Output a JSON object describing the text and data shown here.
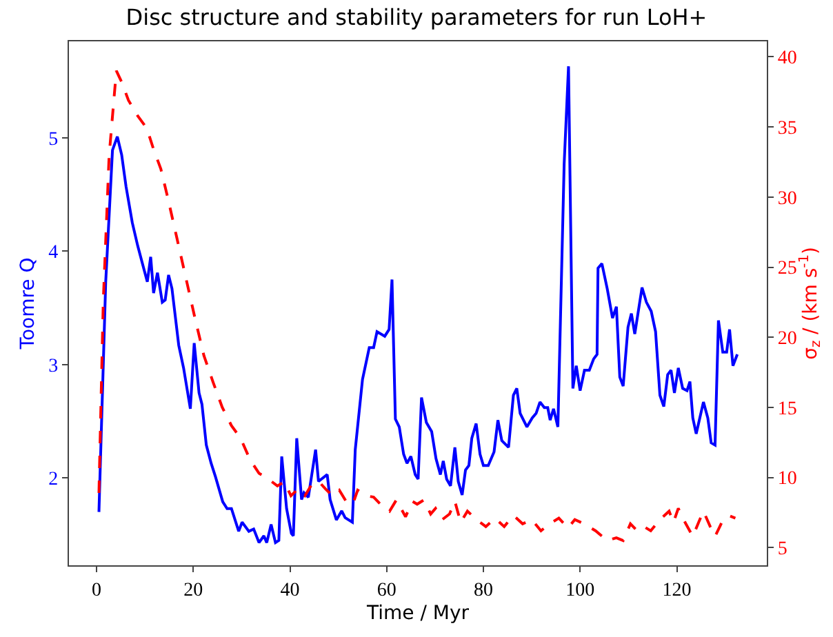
{
  "chart_data": {
    "type": "line",
    "title": "Disc structure and stability parameters for run LoH+",
    "xlabel": "Time / Myr",
    "ylabel": "Toomre Q",
    "y2label": "σ$_{z}$ / (km s$^{-1}$)",
    "xlim": [
      -5.7,
      138.6
    ],
    "xticks": [
      0,
      20,
      40,
      60,
      80,
      100,
      120
    ],
    "ylim": [
      1.23,
      5.85
    ],
    "yticks": [
      2,
      3,
      4,
      5
    ],
    "y2lim": [
      3.74,
      41.1
    ],
    "y2ticks": [
      5,
      10,
      15,
      20,
      25,
      30,
      35,
      40
    ],
    "marker": "none",
    "series": [
      {
        "color": "#0000ff",
        "line_style": "solid",
        "axis": "y",
        "x": [
          0.5,
          1.9,
          3.3,
          4.3,
          5.2,
          6.1,
          7.4,
          8.5,
          9.5,
          10.5,
          11.2,
          11.8,
          12.6,
          13.6,
          14.2,
          14.9,
          15.6,
          17.0,
          18.0,
          19.4,
          20.2,
          21.2,
          21.8,
          22.7,
          23.7,
          24.6,
          26.1,
          27.0,
          27.9,
          29.4,
          30.1,
          31.5,
          32.5,
          33.6,
          34.6,
          35.2,
          36.1,
          37.0,
          37.7,
          38.3,
          39.3,
          40.3,
          40.7,
          41.4,
          42.4,
          42.9,
          43.8,
          45.3,
          45.9,
          47.7,
          48.3,
          49.6,
          50.7,
          51.4,
          52.9,
          53.5,
          55.0,
          56.4,
          57.3,
          58.0,
          59.6,
          60.5,
          61.1,
          61.8,
          62.6,
          63.5,
          64.2,
          65.0,
          65.9,
          66.5,
          67.2,
          68.2,
          69.3,
          70.2,
          71.1,
          71.7,
          72.4,
          73.2,
          74.1,
          74.8,
          75.6,
          76.3,
          77.0,
          77.6,
          78.5,
          79.3,
          80.0,
          81.0,
          82.2,
          83.0,
          83.8,
          85.2,
          86.2,
          86.9,
          87.6,
          89.0,
          90.1,
          90.9,
          91.7,
          92.6,
          93.3,
          93.8,
          94.5,
          95.4,
          96.7,
          97.6,
          98.5,
          99.2,
          100.0,
          100.9,
          101.9,
          102.8,
          103.5,
          103.7,
          104.5,
          105.6,
          106.7,
          107.5,
          108.2,
          108.9,
          109.9,
          110.6,
          111.3,
          112.8,
          113.7,
          114.7,
          115.6,
          116.5,
          117.3,
          118.1,
          118.8,
          119.5,
          120.3,
          121.2,
          122.1,
          122.7,
          123.3,
          124.0,
          125.5,
          126.4,
          127.1,
          127.9,
          128.6,
          129.5,
          130.3,
          130.9,
          131.6,
          132.5
        ],
        "values": [
          1.7,
          3.73,
          4.89,
          5.01,
          4.85,
          4.57,
          4.25,
          4.05,
          3.89,
          3.73,
          3.95,
          3.63,
          3.81,
          3.55,
          3.57,
          3.79,
          3.67,
          3.17,
          2.97,
          2.61,
          3.19,
          2.75,
          2.65,
          2.29,
          2.13,
          2.01,
          1.79,
          1.73,
          1.73,
          1.53,
          1.61,
          1.53,
          1.55,
          1.43,
          1.49,
          1.43,
          1.59,
          1.43,
          1.45,
          2.19,
          1.73,
          1.51,
          1.49,
          2.35,
          1.81,
          1.87,
          1.83,
          2.25,
          1.97,
          2.03,
          1.81,
          1.63,
          1.71,
          1.65,
          1.61,
          2.25,
          2.87,
          3.15,
          3.15,
          3.29,
          3.25,
          3.31,
          3.75,
          2.52,
          2.45,
          2.21,
          2.13,
          2.19,
          2.03,
          1.99,
          2.71,
          2.49,
          2.41,
          2.17,
          2.03,
          2.15,
          1.99,
          1.93,
          2.27,
          1.97,
          1.85,
          2.07,
          2.11,
          2.35,
          2.48,
          2.21,
          2.11,
          2.11,
          2.23,
          2.51,
          2.33,
          2.27,
          2.73,
          2.79,
          2.57,
          2.45,
          2.53,
          2.57,
          2.67,
          2.62,
          2.62,
          2.51,
          2.61,
          2.45,
          4.77,
          5.63,
          2.79,
          2.99,
          2.77,
          2.95,
          2.95,
          3.05,
          3.09,
          3.85,
          3.89,
          3.67,
          3.41,
          3.51,
          2.89,
          2.81,
          3.33,
          3.45,
          3.27,
          3.68,
          3.55,
          3.47,
          3.29,
          2.73,
          2.63,
          2.91,
          2.95,
          2.75,
          2.97,
          2.79,
          2.77,
          2.85,
          2.53,
          2.39,
          2.67,
          2.53,
          2.31,
          2.29,
          3.39,
          3.11,
          3.11,
          3.31,
          2.99,
          3.09
        ]
      },
      {
        "color": "#ff0000",
        "line_style": "dashed",
        "axis": "y2",
        "x": [
          0.5,
          1.4,
          2.6,
          4.1,
          5.2,
          6.6,
          8.5,
          10.4,
          11.8,
          13.3,
          14.7,
          16.6,
          18.5,
          20.4,
          22.2,
          24.1,
          26.0,
          27.9,
          29.8,
          31.7,
          33.6,
          35.5,
          37.4,
          38.8,
          40.2,
          41.7,
          43.1,
          44.5,
          46.0,
          47.3,
          48.8,
          50.2,
          51.6,
          53.0,
          54.0,
          55.9,
          57.3,
          58.7,
          60.6,
          62.0,
          63.9,
          65.3,
          66.3,
          67.7,
          69.1,
          70.1,
          71.5,
          73.0,
          74.1,
          75.3,
          76.7,
          78.6,
          80.5,
          82.4,
          84.3,
          86.2,
          88.1,
          90.0,
          91.9,
          93.7,
          95.6,
          97.5,
          98.9,
          100.8,
          103.2,
          105.6,
          107.5,
          108.9,
          110.4,
          111.8,
          113.2,
          114.6,
          116.5,
          118.4,
          119.3,
          120.3,
          121.7,
          123.3,
          124.5,
          125.5,
          126.9,
          127.9,
          129.3,
          130.7,
          132.1
        ],
        "values": [
          8.9,
          22.6,
          32.9,
          39.0,
          38.2,
          36.9,
          35.8,
          34.9,
          33.4,
          32.0,
          30.0,
          27.1,
          24.2,
          21.3,
          18.7,
          16.8,
          15.0,
          13.7,
          12.8,
          11.3,
          10.3,
          9.9,
          9.4,
          9.7,
          8.7,
          9.2,
          8.7,
          9.5,
          9.7,
          9.2,
          8.7,
          9.1,
          8.3,
          8.1,
          9.1,
          8.7,
          8.6,
          8.1,
          7.6,
          8.4,
          7.2,
          8.3,
          8.1,
          8.4,
          7.4,
          7.8,
          7.0,
          7.4,
          8.3,
          6.8,
          7.6,
          7.0,
          6.5,
          7.1,
          6.5,
          7.3,
          6.7,
          7.0,
          6.2,
          6.7,
          7.1,
          6.4,
          7.0,
          6.7,
          6.2,
          5.5,
          5.7,
          5.5,
          6.7,
          6.2,
          6.5,
          6.2,
          7.0,
          7.6,
          6.8,
          7.8,
          6.8,
          5.8,
          6.8,
          7.6,
          6.5,
          5.8,
          6.8,
          7.3,
          7.1
        ]
      }
    ]
  }
}
